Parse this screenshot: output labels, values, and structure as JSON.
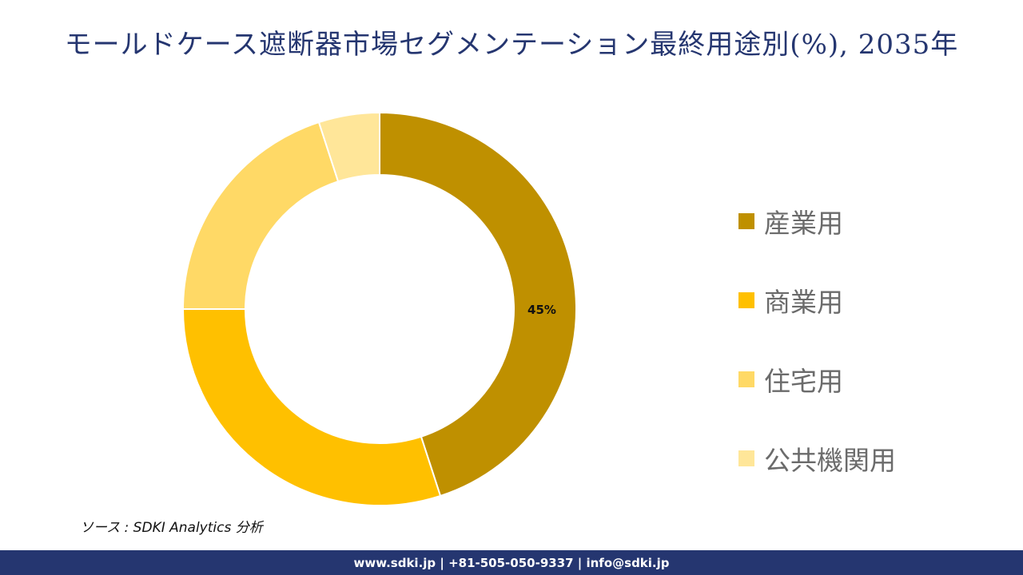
{
  "title": "モールドケース遮断器市場セグメンテーション最終用途別(%), 2035年",
  "chart_data": {
    "type": "pie",
    "subtype": "donut",
    "title": "モールドケース遮断器市場セグメンテーション最終用途別(%), 2035年",
    "categories": [
      "産業用",
      "商業用",
      "住宅用",
      "公共機関用"
    ],
    "values": [
      45,
      30,
      20,
      5
    ],
    "colors": [
      "#BF9000",
      "#FFC000",
      "#FFD966",
      "#FFE699"
    ],
    "data_labels": [
      "45%",
      "",
      "",
      ""
    ],
    "start_angle": 0,
    "direction": "clockwise",
    "legend_position": "right"
  },
  "legend": {
    "items": [
      {
        "label": "産業用",
        "color": "#BF9000"
      },
      {
        "label": "商業用",
        "color": "#FFC000"
      },
      {
        "label": "住宅用",
        "color": "#FFD966"
      },
      {
        "label": "公共機関用",
        "color": "#FFE699"
      }
    ]
  },
  "source": "ソース : SDKI Analytics  分析",
  "footer": "www.sdki.jp | +81-505-050-9337 | info@sdki.jp"
}
